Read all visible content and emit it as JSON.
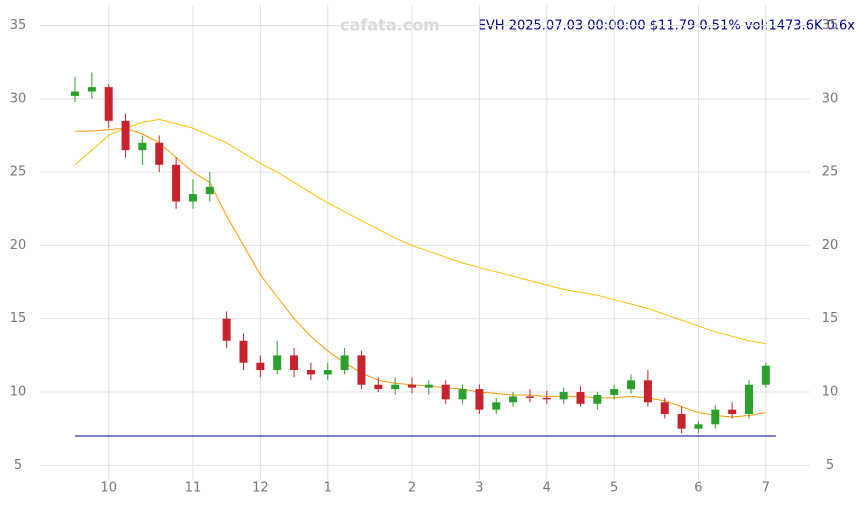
{
  "chart_data": {
    "type": "candlestick",
    "title": "EVH 2025.07.03 00:00:00 $11.79 0.51% vol:1473.6K 0.6x",
    "watermark": "cafata.com",
    "categories": [
      null,
      null,
      "10",
      null,
      null,
      null,
      null,
      "11",
      null,
      null,
      null,
      "12",
      null,
      null,
      null,
      "1",
      null,
      null,
      null,
      null,
      "2",
      null,
      null,
      null,
      "3",
      null,
      null,
      null,
      "4",
      null,
      null,
      null,
      "5",
      null,
      null,
      null,
      null,
      "6",
      null,
      null,
      null,
      "7"
    ],
    "open": [
      30.2,
      30.5,
      30.8,
      28.5,
      26.5,
      27,
      25.5,
      23,
      23.5,
      15,
      13.5,
      12,
      11.5,
      12.5,
      11.5,
      11.2,
      11.5,
      12.5,
      10.5,
      10.2,
      10.5,
      10.3,
      10.5,
      9.5,
      10.2,
      8.8,
      9.3,
      9.7,
      9.6,
      9.5,
      10,
      9.2,
      9.8,
      10.2,
      10.8,
      9.3,
      8.5,
      7.5,
      7.8,
      8.8,
      8.5,
      10.5
    ],
    "high": [
      31.5,
      31.8,
      31,
      29,
      27.5,
      27.5,
      26,
      24.5,
      25,
      15.5,
      14,
      12.5,
      13.5,
      13,
      12,
      12,
      13,
      12.8,
      11,
      11,
      11,
      10.8,
      10.8,
      10.5,
      10.5,
      9.6,
      10,
      10.2,
      10.1,
      10.3,
      10.4,
      10,
      10.5,
      11.2,
      11.5,
      9.6,
      9,
      8,
      9.1,
      9.3,
      10.8,
      12
    ],
    "low": [
      29.8,
      30,
      28,
      26,
      25.5,
      25,
      22.5,
      22.5,
      23,
      13,
      11.5,
      11,
      11.2,
      11,
      10.8,
      10.8,
      11.2,
      10.2,
      10,
      9.8,
      9.9,
      9.8,
      9.2,
      9.2,
      8.5,
      8.5,
      9,
      9.3,
      9.2,
      9.2,
      9,
      8.8,
      9.5,
      9.9,
      9,
      8.2,
      7.2,
      7.2,
      7.5,
      8.2,
      8.2,
      10.3
    ],
    "close": [
      30.5,
      30.8,
      28.5,
      26.5,
      27,
      25.5,
      23,
      23.5,
      24,
      13.5,
      12,
      11.5,
      12.5,
      11.5,
      11.2,
      11.5,
      12.5,
      10.5,
      10.2,
      10.5,
      10.3,
      10.5,
      9.5,
      10.2,
      8.8,
      9.3,
      9.7,
      9.6,
      9.5,
      10,
      9.2,
      9.8,
      10.2,
      10.8,
      9.3,
      8.5,
      7.5,
      7.8,
      8.8,
      8.5,
      10.5,
      11.8
    ],
    "up_color": "#2ca02c",
    "down_color": "#c8232c",
    "lines": [
      {
        "color": "#ffc000",
        "values": [
          25.5,
          26.5,
          27.5,
          28,
          28.4,
          28.6,
          28.3,
          28,
          27.5,
          27,
          26.3,
          25.6,
          25,
          24.3,
          23.6,
          22.9,
          22.3,
          21.7,
          21.1,
          20.5,
          20,
          19.6,
          19.2,
          18.8,
          18.5,
          18.2,
          17.9,
          17.6,
          17.3,
          17,
          16.8,
          16.6,
          16.3,
          16,
          15.7,
          15.3,
          14.9,
          14.5,
          14.1,
          13.8,
          13.5,
          13.3
        ]
      },
      {
        "color": "#ff9900",
        "values": [
          27.8,
          27.8,
          27.9,
          28,
          27.6,
          27,
          26,
          25,
          24.3,
          22,
          20,
          18,
          16.5,
          15,
          13.8,
          12.8,
          12,
          11.3,
          10.8,
          10.6,
          10.5,
          10.4,
          10.3,
          10.2,
          10,
          9.9,
          9.8,
          9.8,
          9.7,
          9.7,
          9.7,
          9.6,
          9.6,
          9.7,
          9.6,
          9.4,
          9.0,
          8.6,
          8.4,
          8.3,
          8.4,
          8.6
        ]
      }
    ],
    "reference_line": {
      "value": 7.0,
      "color": "#00008b"
    },
    "ylim": [
      4,
      36.4
    ],
    "yticks": [
      5,
      10,
      15,
      20,
      25,
      30,
      35
    ],
    "grid": true
  }
}
